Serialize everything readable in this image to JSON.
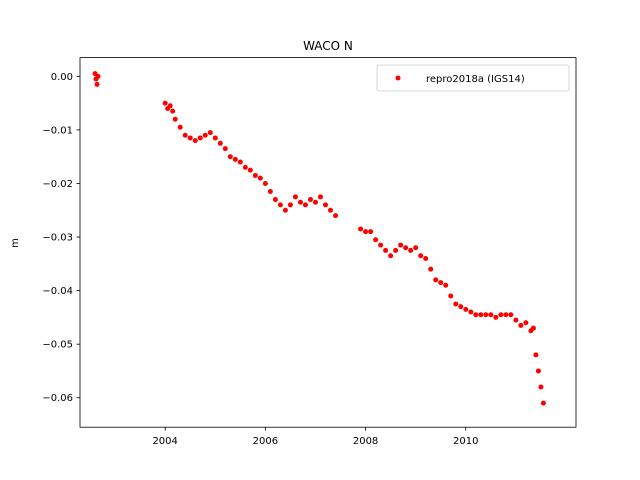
{
  "chart_data": {
    "type": "scatter",
    "title": "WACO N",
    "xlabel": "",
    "ylabel": "m",
    "xlim": [
      2002.3,
      2012.2
    ],
    "ylim": [
      -0.0655,
      0.0035
    ],
    "xticks": [
      2004,
      2006,
      2008,
      2010
    ],
    "xtick_labels": [
      "2004",
      "2006",
      "2008",
      "2010"
    ],
    "yticks": [
      0.0,
      -0.01,
      -0.02,
      -0.03,
      -0.04,
      -0.05,
      -0.06
    ],
    "ytick_labels": [
      "0.00",
      "−0.01",
      "−0.02",
      "−0.03",
      "−0.04",
      "−0.05",
      "−0.06"
    ],
    "grid": false,
    "legend_position": "top-right",
    "series": [
      {
        "name": "repro2018a (IGS14)",
        "color": "#ff0000",
        "marker": "circle",
        "x": [
          2002.6,
          2002.62,
          2002.64,
          2002.66,
          2004.0,
          2004.05,
          2004.1,
          2004.15,
          2004.2,
          2004.3,
          2004.4,
          2004.5,
          2004.6,
          2004.7,
          2004.8,
          2004.9,
          2005.0,
          2005.1,
          2005.2,
          2005.3,
          2005.4,
          2005.5,
          2005.6,
          2005.7,
          2005.8,
          2005.9,
          2006.0,
          2006.1,
          2006.2,
          2006.3,
          2006.4,
          2006.5,
          2006.6,
          2006.7,
          2006.8,
          2006.9,
          2007.0,
          2007.1,
          2007.2,
          2007.3,
          2007.4,
          2007.9,
          2008.0,
          2008.1,
          2008.2,
          2008.3,
          2008.4,
          2008.5,
          2008.6,
          2008.7,
          2008.8,
          2008.9,
          2009.0,
          2009.1,
          2009.2,
          2009.3,
          2009.4,
          2009.5,
          2009.6,
          2009.7,
          2009.8,
          2009.9,
          2010.0,
          2010.1,
          2010.2,
          2010.3,
          2010.4,
          2010.5,
          2010.6,
          2010.7,
          2010.8,
          2010.9,
          2011.0,
          2011.1,
          2011.2,
          2011.3,
          2011.35,
          2011.4,
          2011.45,
          2011.5,
          2011.55
        ],
        "y": [
          0.0005,
          -0.0005,
          -0.0015,
          0.0,
          -0.005,
          -0.006,
          -0.0055,
          -0.0065,
          -0.008,
          -0.0095,
          -0.011,
          -0.0115,
          -0.012,
          -0.0115,
          -0.011,
          -0.0105,
          -0.0115,
          -0.0125,
          -0.0135,
          -0.015,
          -0.0155,
          -0.016,
          -0.017,
          -0.0175,
          -0.0185,
          -0.019,
          -0.02,
          -0.0215,
          -0.023,
          -0.024,
          -0.025,
          -0.024,
          -0.0225,
          -0.0235,
          -0.024,
          -0.023,
          -0.0235,
          -0.0225,
          -0.024,
          -0.025,
          -0.026,
          -0.0285,
          -0.029,
          -0.029,
          -0.0305,
          -0.0315,
          -0.0325,
          -0.0335,
          -0.0325,
          -0.0315,
          -0.032,
          -0.0325,
          -0.032,
          -0.0335,
          -0.034,
          -0.036,
          -0.038,
          -0.0385,
          -0.039,
          -0.041,
          -0.0425,
          -0.043,
          -0.0435,
          -0.044,
          -0.0445,
          -0.0445,
          -0.0445,
          -0.0445,
          -0.045,
          -0.0445,
          -0.0445,
          -0.0445,
          -0.0455,
          -0.0465,
          -0.046,
          -0.0475,
          -0.047,
          -0.052,
          -0.055,
          -0.058,
          -0.061
        ]
      }
    ]
  }
}
